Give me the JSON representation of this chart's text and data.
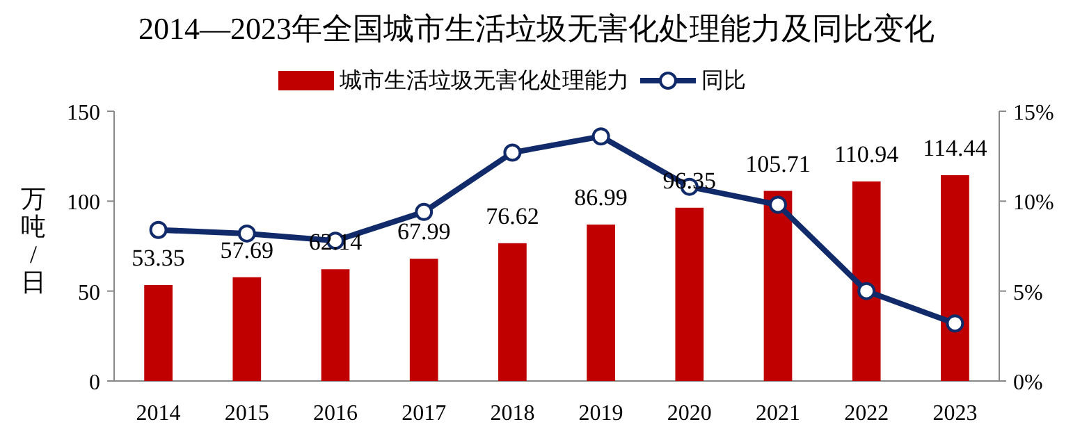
{
  "chart_data": {
    "type": "bar",
    "title": "2014—2023年全国城市生活垃圾无害化处理能力及同比变化",
    "ylabel": "万吨/日",
    "categories": [
      "2014",
      "2015",
      "2016",
      "2017",
      "2018",
      "2019",
      "2020",
      "2021",
      "2022",
      "2023"
    ],
    "series": [
      {
        "name": "城市生活垃圾无害化处理能力",
        "color": "#c00000",
        "values": [
          53.35,
          57.69,
          62.14,
          67.99,
          76.62,
          86.99,
          96.35,
          105.71,
          110.94,
          114.44
        ],
        "value_labels": [
          "53.35",
          "57.69",
          "62.14",
          "67.99",
          "76.62",
          "86.99",
          "96.35",
          "105.71",
          "110.94",
          "114.44"
        ]
      },
      {
        "name": "同比",
        "type": "line",
        "axis": "y2",
        "color": "#102a6a",
        "marker": "circle",
        "values": [
          8.4,
          8.2,
          7.8,
          9.4,
          12.7,
          13.6,
          10.8,
          9.8,
          5.0,
          3.2
        ]
      }
    ],
    "ylim": [
      0,
      150
    ],
    "yticks": [
      0,
      50,
      100,
      150
    ],
    "y2lim": [
      0,
      15
    ],
    "y2ticks": [
      {
        "value": 0,
        "label": "0%"
      },
      {
        "value": 5,
        "label": "5%"
      },
      {
        "value": 10,
        "label": "10%"
      },
      {
        "value": 15,
        "label": "15%"
      }
    ],
    "legend": "top",
    "grid": false
  }
}
